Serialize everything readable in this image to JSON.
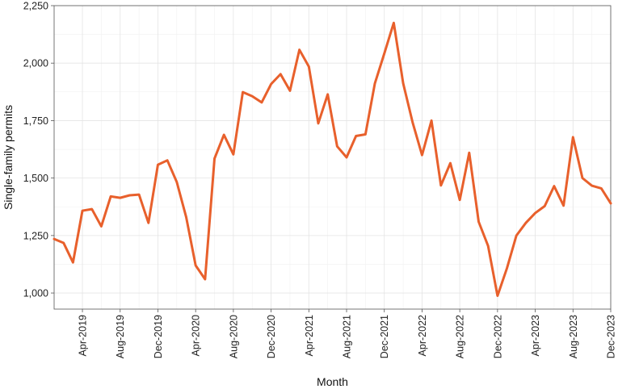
{
  "chart_data": {
    "type": "line",
    "xlabel": "Month",
    "ylabel": "Single-family permits",
    "ylim": [
      930,
      2250
    ],
    "yticks": [
      1000,
      1250,
      1500,
      1750,
      2000,
      2250
    ],
    "ytick_labels": [
      "1,000",
      "1,250",
      "1,500",
      "1,750",
      "2,000",
      "2,250"
    ],
    "xticks": [
      {
        "label": "Apr-2019",
        "index": 3
      },
      {
        "label": "Aug-2019",
        "index": 7
      },
      {
        "label": "Dec-2019",
        "index": 11
      },
      {
        "label": "Apr-2020",
        "index": 15
      },
      {
        "label": "Aug-2020",
        "index": 19
      },
      {
        "label": "Dec-2020",
        "index": 23
      },
      {
        "label": "Apr-2021",
        "index": 27
      },
      {
        "label": "Aug-2021",
        "index": 31
      },
      {
        "label": "Dec-2021",
        "index": 35
      },
      {
        "label": "Apr-2022",
        "index": 39
      },
      {
        "label": "Aug-2022",
        "index": 43
      },
      {
        "label": "Dec-2022",
        "index": 47
      },
      {
        "label": "Apr-2023",
        "index": 51
      },
      {
        "label": "Aug-2023",
        "index": 55
      },
      {
        "label": "Dec-2023",
        "index": 59
      }
    ],
    "x": [
      "2019-01",
      "2019-02",
      "2019-03",
      "2019-04",
      "2019-05",
      "2019-06",
      "2019-07",
      "2019-08",
      "2019-09",
      "2019-10",
      "2019-11",
      "2019-12",
      "2020-01",
      "2020-02",
      "2020-03",
      "2020-04",
      "2020-05",
      "2020-06",
      "2020-07",
      "2020-08",
      "2020-09",
      "2020-10",
      "2020-11",
      "2020-12",
      "2021-01",
      "2021-02",
      "2021-03",
      "2021-04",
      "2021-05",
      "2021-06",
      "2021-07",
      "2021-08",
      "2021-09",
      "2021-10",
      "2021-11",
      "2021-12",
      "2022-01",
      "2022-02",
      "2022-03",
      "2022-04",
      "2022-05",
      "2022-06",
      "2022-07",
      "2022-08",
      "2022-09",
      "2022-10",
      "2022-11",
      "2022-12",
      "2023-01",
      "2023-02",
      "2023-03",
      "2023-04",
      "2023-05",
      "2023-06",
      "2023-07",
      "2023-08",
      "2023-09",
      "2023-10",
      "2023-11",
      "2023-12"
    ],
    "series": [
      {
        "color": "#e8602c",
        "values": [
          1235,
          1218,
          1133,
          1358,
          1365,
          1290,
          1420,
          1414,
          1425,
          1428,
          1305,
          1558,
          1577,
          1483,
          1330,
          1120,
          1060,
          1585,
          1688,
          1603,
          1874,
          1856,
          1829,
          1909,
          1952,
          1880,
          2058,
          1985,
          1738,
          1864,
          1638,
          1590,
          1683,
          1690,
          1912,
          2042,
          2175,
          1912,
          1742,
          1600,
          1750,
          1468,
          1565,
          1405,
          1610,
          1310,
          1205,
          988,
          1108,
          1250,
          1305,
          1348,
          1378,
          1465,
          1380,
          1678,
          1500,
          1467,
          1455,
          1390
        ]
      }
    ]
  }
}
